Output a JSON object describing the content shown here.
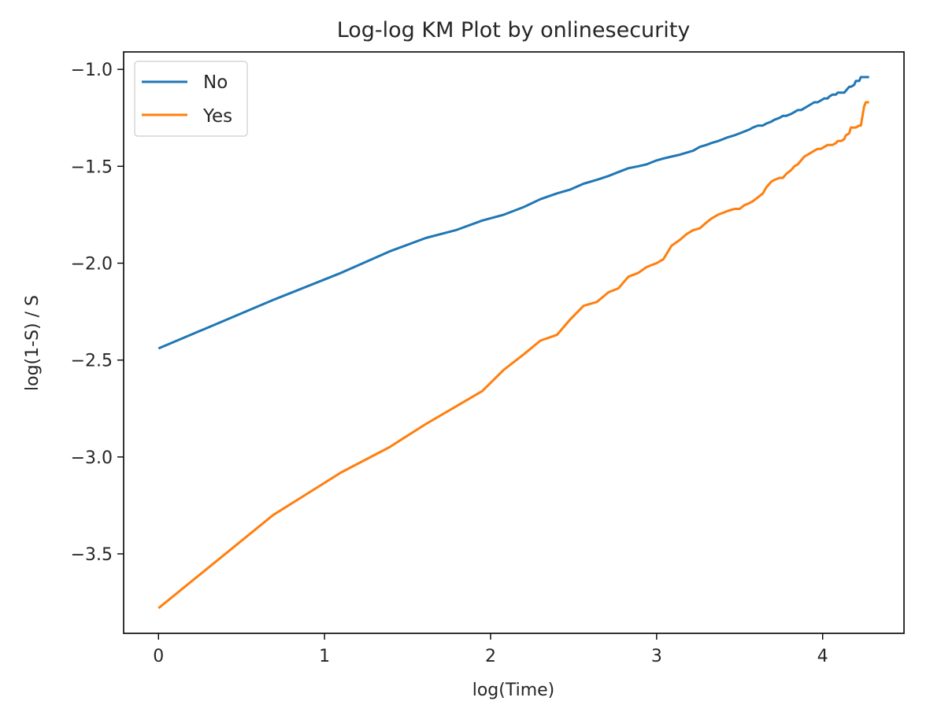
{
  "chart_data": {
    "type": "line",
    "title": "Log-log KM Plot by onlinesecurity",
    "xlabel": "log(Time)",
    "ylabel": "log(1-S) / S",
    "xlim": [
      -0.21,
      4.49
    ],
    "ylim": [
      -3.91,
      -0.91
    ],
    "xticks": [
      0,
      1,
      2,
      3,
      4
    ],
    "xtick_labels": [
      "0",
      "1",
      "2",
      "3",
      "4"
    ],
    "yticks": [
      -1.0,
      -1.5,
      -2.0,
      -2.5,
      -3.0,
      -3.5
    ],
    "ytick_labels": [
      "−1.0",
      "−1.5",
      "−2.0",
      "−2.5",
      "−3.0",
      "−3.5"
    ],
    "grid": false,
    "legend_position": "top-left",
    "series": [
      {
        "name": "No",
        "color": "#1f77b4",
        "x": [
          0.0,
          0.69,
          1.1,
          1.39,
          1.61,
          1.79,
          1.95,
          2.08,
          2.2,
          2.3,
          2.4,
          2.48,
          2.56,
          2.64,
          2.71,
          2.77,
          2.83,
          2.89,
          2.94,
          3.0,
          3.04,
          3.09,
          3.14,
          3.18,
          3.22,
          3.26,
          3.3,
          3.33,
          3.37,
          3.4,
          3.43,
          3.47,
          3.5,
          3.53,
          3.56,
          3.58,
          3.61,
          3.64,
          3.66,
          3.69,
          3.71,
          3.74,
          3.76,
          3.78,
          3.81,
          3.83,
          3.85,
          3.87,
          3.89,
          3.91,
          3.93,
          3.95,
          3.97,
          3.99,
          4.01,
          4.03,
          4.04,
          4.06,
          4.08,
          4.09,
          4.11,
          4.13,
          4.14,
          4.16,
          4.17,
          4.19,
          4.2,
          4.22,
          4.23,
          4.25,
          4.26,
          4.28
        ],
        "y": [
          -2.44,
          -2.19,
          -2.05,
          -1.94,
          -1.87,
          -1.83,
          -1.78,
          -1.75,
          -1.71,
          -1.67,
          -1.64,
          -1.62,
          -1.59,
          -1.57,
          -1.55,
          -1.53,
          -1.51,
          -1.5,
          -1.49,
          -1.47,
          -1.46,
          -1.45,
          -1.44,
          -1.43,
          -1.42,
          -1.4,
          -1.39,
          -1.38,
          -1.37,
          -1.36,
          -1.35,
          -1.34,
          -1.33,
          -1.32,
          -1.31,
          -1.3,
          -1.29,
          -1.29,
          -1.28,
          -1.27,
          -1.26,
          -1.25,
          -1.24,
          -1.24,
          -1.23,
          -1.22,
          -1.21,
          -1.21,
          -1.2,
          -1.19,
          -1.18,
          -1.17,
          -1.17,
          -1.16,
          -1.15,
          -1.15,
          -1.14,
          -1.13,
          -1.13,
          -1.12,
          -1.12,
          -1.12,
          -1.11,
          -1.09,
          -1.09,
          -1.08,
          -1.06,
          -1.06,
          -1.04,
          -1.04,
          -1.04,
          -1.04
        ]
      },
      {
        "name": "Yes",
        "color": "#ff7f0e",
        "x": [
          0.0,
          0.69,
          1.1,
          1.39,
          1.61,
          1.79,
          1.95,
          2.08,
          2.2,
          2.3,
          2.4,
          2.48,
          2.56,
          2.64,
          2.71,
          2.77,
          2.83,
          2.89,
          2.94,
          3.0,
          3.04,
          3.09,
          3.14,
          3.18,
          3.22,
          3.26,
          3.3,
          3.33,
          3.37,
          3.4,
          3.43,
          3.47,
          3.5,
          3.53,
          3.56,
          3.58,
          3.61,
          3.64,
          3.66,
          3.69,
          3.71,
          3.74,
          3.76,
          3.78,
          3.81,
          3.83,
          3.85,
          3.87,
          3.89,
          3.91,
          3.93,
          3.95,
          3.97,
          3.99,
          4.01,
          4.03,
          4.04,
          4.06,
          4.08,
          4.09,
          4.11,
          4.13,
          4.14,
          4.16,
          4.17,
          4.19,
          4.2,
          4.22,
          4.23,
          4.25,
          4.26,
          4.28
        ],
        "y": [
          -3.78,
          -3.3,
          -3.08,
          -2.95,
          -2.83,
          -2.74,
          -2.66,
          -2.55,
          -2.47,
          -2.4,
          -2.37,
          -2.29,
          -2.22,
          -2.2,
          -2.15,
          -2.13,
          -2.07,
          -2.05,
          -2.02,
          -2.0,
          -1.98,
          -1.91,
          -1.88,
          -1.85,
          -1.83,
          -1.82,
          -1.79,
          -1.77,
          -1.75,
          -1.74,
          -1.73,
          -1.72,
          -1.72,
          -1.7,
          -1.69,
          -1.68,
          -1.66,
          -1.64,
          -1.61,
          -1.58,
          -1.57,
          -1.56,
          -1.56,
          -1.54,
          -1.52,
          -1.5,
          -1.49,
          -1.47,
          -1.45,
          -1.44,
          -1.43,
          -1.42,
          -1.41,
          -1.41,
          -1.4,
          -1.39,
          -1.39,
          -1.39,
          -1.38,
          -1.37,
          -1.37,
          -1.36,
          -1.34,
          -1.33,
          -1.3,
          -1.3,
          -1.3,
          -1.29,
          -1.29,
          -1.19,
          -1.17,
          -1.17
        ]
      }
    ]
  }
}
